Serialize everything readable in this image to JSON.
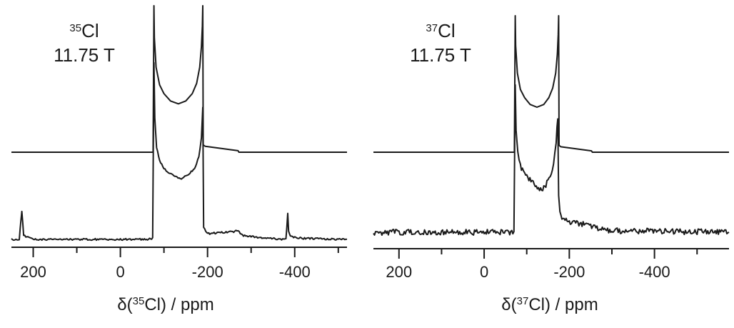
{
  "chart_data": [
    {
      "type": "line",
      "label_nucleus": "35Cl",
      "label_mass": "35",
      "label_element": "Cl",
      "field": "11.75 T",
      "xlabel": "δ(35Cl) / ppm",
      "xlabel_prefix": "δ(",
      "xlabel_mass": "35",
      "xlabel_suffix": "Cl) / ppm",
      "xlim": [
        250,
        -520
      ],
      "x_reversed": true,
      "x_ticks_major": [
        200,
        0,
        -200,
        -400
      ],
      "x_tick_labels": [
        "200",
        "0",
        "-200",
        "-400"
      ],
      "x_ticks_minor": [
        100,
        -100,
        -300,
        -500
      ],
      "discontinuities": [
        -77,
        -189
      ],
      "series": [
        {
          "role": "simulated",
          "x": [
            250,
            -75,
            -77,
            -78,
            -82,
            -90,
            -100,
            -115,
            -133,
            -150,
            -165,
            -175,
            -182,
            -186,
            -188,
            -189,
            -190,
            -195,
            -270,
            -272,
            -520
          ],
          "y": [
            0,
            0,
            1.0,
            0.78,
            0.58,
            0.46,
            0.4,
            0.35,
            0.33,
            0.35,
            0.4,
            0.47,
            0.58,
            0.72,
            0.86,
            1.0,
            0.05,
            0.04,
            0.01,
            0,
            0
          ]
        },
        {
          "role": "experimental",
          "x": [
            250,
            232,
            228,
            226,
            222,
            200,
            100,
            0,
            -60,
            -74,
            -77,
            -79,
            -83,
            -90,
            -100,
            -110,
            -125,
            -140,
            -155,
            -170,
            -180,
            -186,
            -189,
            -191,
            -196,
            -205,
            -230,
            -260,
            -270,
            -280,
            -320,
            -370,
            -380,
            -384,
            -386,
            -390,
            -420,
            -520
          ],
          "y": [
            0,
            0,
            0.1,
            0.14,
            0.02,
            0.0,
            0.0,
            0.0,
            0.0,
            0.005,
            0.9,
            0.62,
            0.47,
            0.4,
            0.36,
            0.34,
            0.32,
            0.31,
            0.33,
            0.36,
            0.42,
            0.52,
            0.67,
            0.06,
            0.04,
            0.03,
            0.035,
            0.04,
            0.045,
            0.02,
            0.01,
            0.0,
            0.0,
            0.13,
            0.04,
            0.015,
            0.005,
            0.0
          ]
        }
      ]
    },
    {
      "type": "line",
      "label_nucleus": "37Cl",
      "label_mass": "37",
      "label_element": "Cl",
      "field": "11.75 T",
      "xlabel": "δ(37Cl) / ppm",
      "xlabel_prefix": "δ(",
      "xlabel_mass": "37",
      "xlabel_suffix": "Cl) / ppm",
      "xlim": [
        260,
        -575
      ],
      "x_reversed": true,
      "x_ticks_major": [
        200,
        0,
        -200,
        -400
      ],
      "x_tick_labels": [
        "200",
        "0",
        "-200",
        "-400"
      ],
      "x_ticks_minor": [
        100,
        -100,
        -300,
        -500
      ],
      "discontinuities": [
        -73,
        -175
      ],
      "series": [
        {
          "role": "simulated",
          "x": [
            260,
            -71,
            -73,
            -74,
            -78,
            -85,
            -95,
            -108,
            -124,
            -140,
            -152,
            -161,
            -168,
            -172,
            -174,
            -175,
            -176,
            -180,
            -252,
            -254,
            -575
          ],
          "y": [
            0,
            0,
            1.0,
            0.78,
            0.58,
            0.46,
            0.4,
            0.35,
            0.33,
            0.35,
            0.4,
            0.47,
            0.58,
            0.72,
            0.86,
            1.0,
            0.05,
            0.04,
            0.01,
            0,
            0
          ]
        },
        {
          "role": "experimental",
          "x": [
            260,
            -60,
            -70,
            -73,
            -75,
            -79,
            -85,
            -95,
            -105,
            -115,
            -125,
            -135,
            -145,
            -155,
            -163,
            -169,
            -173,
            -175,
            -178,
            -185,
            -200,
            -230,
            -260,
            -300,
            -575
          ],
          "y": [
            0.0,
            0.0,
            0.005,
            0.9,
            0.62,
            0.48,
            0.4,
            0.37,
            0.33,
            0.3,
            0.27,
            0.26,
            0.29,
            0.34,
            0.42,
            0.55,
            0.7,
            0.22,
            0.12,
            0.08,
            0.06,
            0.05,
            0.03,
            0.01,
            0.0
          ]
        }
      ]
    }
  ]
}
